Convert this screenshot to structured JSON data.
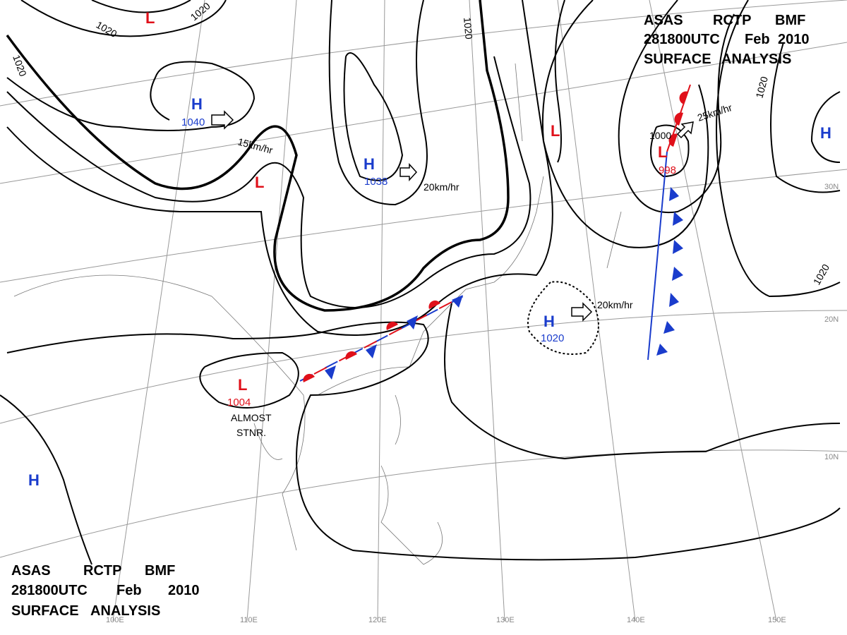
{
  "header": {
    "lines": [
      [
        "ASAS",
        "RCTP",
        "BMF"
      ],
      [
        "281800UTC",
        "Feb",
        "2010"
      ],
      [
        "SURFACE",
        "ANALYSIS"
      ]
    ]
  },
  "footer": {
    "lines": [
      [
        "ASAS",
        "RCTP",
        "BMF"
      ],
      [
        "281800UTC",
        "Feb",
        "2010"
      ],
      [
        "SURFACE",
        "ANALYSIS"
      ]
    ]
  },
  "centers": [
    {
      "symbol": "L"
    },
    {
      "symbol": "H",
      "pressure": 1040
    },
    {
      "symbol": "L"
    },
    {
      "symbol": "H",
      "pressure": 1038
    },
    {
      "symbol": "L"
    },
    {
      "symbol": "L",
      "pressure": 998
    },
    {
      "symbol": "H"
    },
    {
      "symbol": "H",
      "pressure": 1020
    },
    {
      "symbol": "L",
      "pressure": 1004
    },
    {
      "symbol": "H"
    }
  ],
  "motions": [
    "15km/hr",
    "20km/hr",
    "25km/hr",
    "20km/hr"
  ],
  "isobar_labels": [
    1020,
    1020,
    1020,
    1020,
    1020,
    1020,
    1000
  ],
  "note": [
    "ALMOST",
    "STNR."
  ],
  "latitudes": [
    "30N",
    "20N",
    "10N"
  ],
  "longitudes": [
    "100E",
    "110E",
    "120E",
    "130E",
    "140E",
    "150E"
  ]
}
